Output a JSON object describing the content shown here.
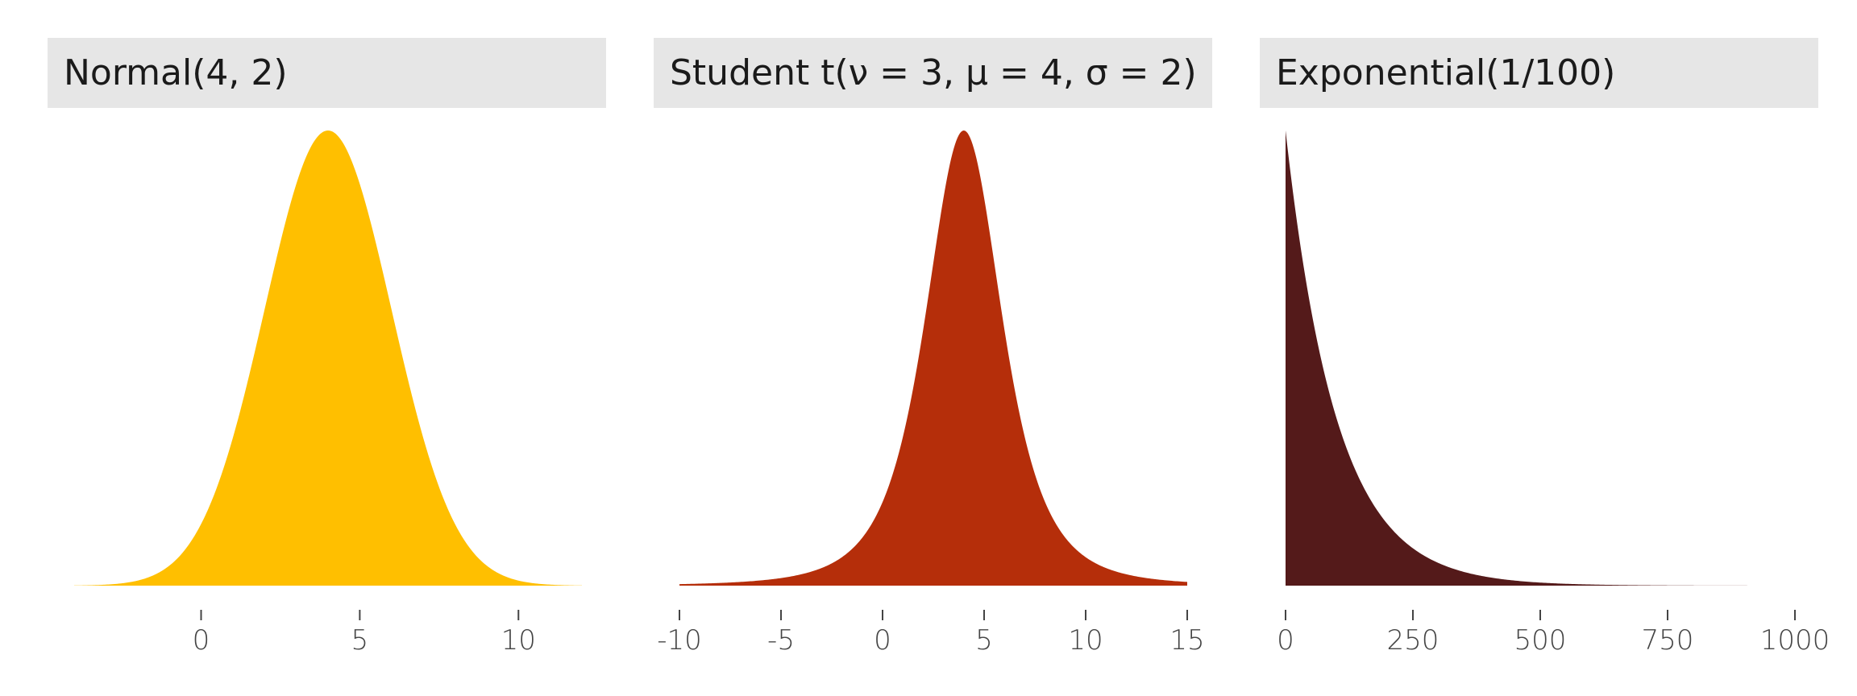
{
  "chart_data": [
    {
      "type": "area",
      "title": "Normal(4, 2)",
      "distribution": "normal",
      "params": {
        "mu": 4,
        "sigma": 2
      },
      "xlim": [
        -4,
        12
      ],
      "ticks": [
        0,
        5,
        10
      ],
      "tick_labels": [
        "0",
        "5",
        "10"
      ],
      "color": "#FFBF00",
      "grid": false
    },
    {
      "type": "area",
      "title": "Student t(ν = 3, μ = 4, σ = 2)",
      "distribution": "student_t",
      "params": {
        "nu": 3,
        "mu": 4,
        "sigma": 2
      },
      "xlim": [
        -10,
        15
      ],
      "ticks": [
        -10,
        -5,
        0,
        5,
        10,
        15
      ],
      "tick_labels": [
        "-10",
        "-5",
        "0",
        "5",
        "10",
        "15"
      ],
      "color": "#B52E0A",
      "grid": false
    },
    {
      "type": "area",
      "title": "Exponential(1/100)",
      "distribution": "exponential",
      "params": {
        "rate": 0.01
      },
      "xlim": [
        0,
        1000
      ],
      "ticks": [
        0,
        250,
        500,
        750,
        1000
      ],
      "tick_labels": [
        "0",
        "250",
        "500",
        "750",
        "1000"
      ],
      "color": "#541A1A",
      "grid": false
    }
  ]
}
